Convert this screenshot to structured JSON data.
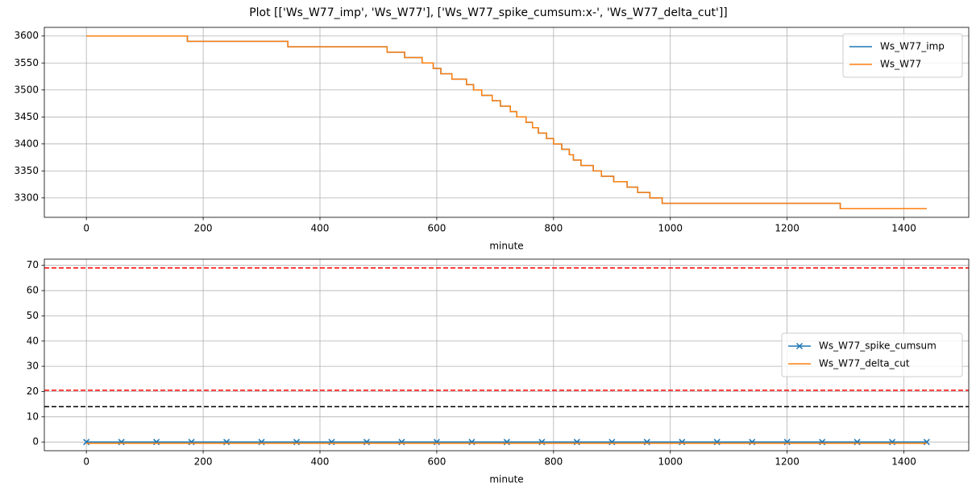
{
  "title": "Plot [['Ws_W77_imp', 'Ws_W77'], ['Ws_W77_spike_cumsum:x-', 'Ws_W77_delta_cut']]",
  "chart_data": [
    {
      "type": "line",
      "xlabel": "minute",
      "grid": true,
      "legend": "upper right",
      "xlim": [
        -72,
        1511
      ],
      "xticks": [
        0,
        200,
        400,
        600,
        800,
        1000,
        1200,
        1400
      ],
      "ylim": [
        3264,
        3616
      ],
      "yticks": [
        3300,
        3350,
        3400,
        3450,
        3500,
        3550,
        3600
      ],
      "x": [
        0,
        173,
        173,
        345,
        345,
        515,
        515,
        545,
        545,
        575,
        575,
        594,
        594,
        607,
        607,
        626,
        626,
        651,
        651,
        663,
        663,
        677,
        677,
        695,
        695,
        709,
        709,
        726,
        726,
        737,
        737,
        753,
        753,
        764,
        764,
        774,
        774,
        788,
        788,
        800,
        800,
        814,
        814,
        827,
        827,
        834,
        834,
        847,
        847,
        868,
        868,
        882,
        882,
        903,
        903,
        926,
        926,
        944,
        944,
        965,
        965,
        986,
        986,
        1291,
        1291,
        1439
      ],
      "series": [
        {
          "name": "Ws_W77_imp",
          "color": "#1f77b4",
          "values": [
            3600,
            3600,
            3590,
            3590,
            3580,
            3580,
            3570,
            3570,
            3560,
            3560,
            3550,
            3550,
            3540,
            3540,
            3530,
            3530,
            3520,
            3520,
            3510,
            3510,
            3500,
            3500,
            3490,
            3490,
            3480,
            3480,
            3470,
            3470,
            3460,
            3460,
            3450,
            3450,
            3440,
            3440,
            3430,
            3430,
            3420,
            3420,
            3410,
            3410,
            3400,
            3400,
            3390,
            3390,
            3380,
            3380,
            3370,
            3370,
            3360,
            3360,
            3350,
            3350,
            3340,
            3340,
            3330,
            3330,
            3320,
            3320,
            3310,
            3310,
            3300,
            3300,
            3290,
            3290,
            3280,
            3280
          ]
        },
        {
          "name": "Ws_W77",
          "color": "#ff7f0e",
          "values": [
            3600,
            3600,
            3590,
            3590,
            3580,
            3580,
            3570,
            3570,
            3560,
            3560,
            3550,
            3550,
            3540,
            3540,
            3530,
            3530,
            3520,
            3520,
            3510,
            3510,
            3500,
            3500,
            3490,
            3490,
            3480,
            3480,
            3470,
            3470,
            3460,
            3460,
            3450,
            3450,
            3440,
            3440,
            3430,
            3430,
            3420,
            3420,
            3410,
            3410,
            3400,
            3400,
            3390,
            3390,
            3380,
            3380,
            3370,
            3370,
            3360,
            3360,
            3350,
            3350,
            3340,
            3340,
            3330,
            3330,
            3320,
            3320,
            3310,
            3310,
            3300,
            3300,
            3290,
            3290,
            3280,
            3280
          ]
        }
      ]
    },
    {
      "type": "line",
      "xlabel": "minute",
      "grid": true,
      "legend": "center right",
      "xlim": [
        -72,
        1511
      ],
      "xticks": [
        0,
        200,
        400,
        600,
        800,
        1000,
        1200,
        1400
      ],
      "ylim": [
        -3.45,
        72.45
      ],
      "yticks": [
        0,
        10,
        20,
        30,
        40,
        50,
        60,
        70
      ],
      "hlines": [
        {
          "value": 69,
          "color": "#ff0000"
        },
        {
          "value": 20.5,
          "color": "#ff0000"
        },
        {
          "value": 14,
          "color": "#000000"
        }
      ],
      "series": [
        {
          "name": "Ws_W77_spike_cumsum",
          "color": "#1f77b4",
          "marker": "x",
          "x": [
            0,
            60,
            120,
            180,
            240,
            300,
            360,
            420,
            480,
            540,
            600,
            660,
            720,
            780,
            840,
            900,
            960,
            1020,
            1080,
            1140,
            1200,
            1260,
            1320,
            1380,
            1439
          ],
          "values": [
            0,
            0,
            0,
            0,
            0,
            0,
            0,
            0,
            0,
            0,
            0,
            0,
            0,
            0,
            0,
            0,
            0,
            0,
            0,
            0,
            0,
            0,
            0,
            0,
            0
          ]
        },
        {
          "name": "Ws_W77_delta_cut",
          "color": "#ff7f0e",
          "x": [
            0,
            1439
          ],
          "values": [
            -0.5,
            -0.5
          ]
        }
      ]
    }
  ]
}
